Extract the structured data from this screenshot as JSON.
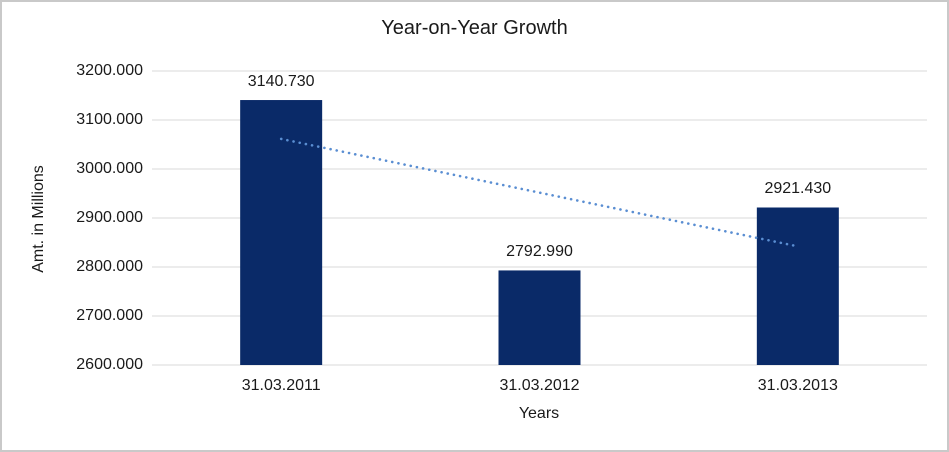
{
  "chart_data": {
    "type": "bar",
    "title": "Year-on-Year Growth",
    "xlabel": "Years",
    "ylabel": "Amt. in Millions",
    "categories": [
      "31.03.2011",
      "31.03.2012",
      "31.03.2013"
    ],
    "values": [
      3140.73,
      2792.99,
      2921.43
    ],
    "data_labels": [
      "3140.730",
      "2792.990",
      "2921.430"
    ],
    "ylim": [
      2600,
      3200
    ],
    "yticks": [
      {
        "value": 2600,
        "label": "2600.000"
      },
      {
        "value": 2700,
        "label": "2700.000"
      },
      {
        "value": 2800,
        "label": "2800.000"
      },
      {
        "value": 2900,
        "label": "2900.000"
      },
      {
        "value": 3000,
        "label": "3000.000"
      },
      {
        "value": 3100,
        "label": "3100.000"
      },
      {
        "value": 3200,
        "label": "3200.000"
      }
    ],
    "grid": true,
    "legend": false,
    "trendline": {
      "type": "linear",
      "style": "dotted",
      "start_value": 3061.4,
      "end_value": 2842.1,
      "color": "#5a8ed2"
    },
    "colors": {
      "bar": "#0a2a68",
      "gridline": "#d9d9d9",
      "text": "#1a1a1a",
      "background": "#ffffff",
      "border": "#c9c9c9"
    }
  }
}
